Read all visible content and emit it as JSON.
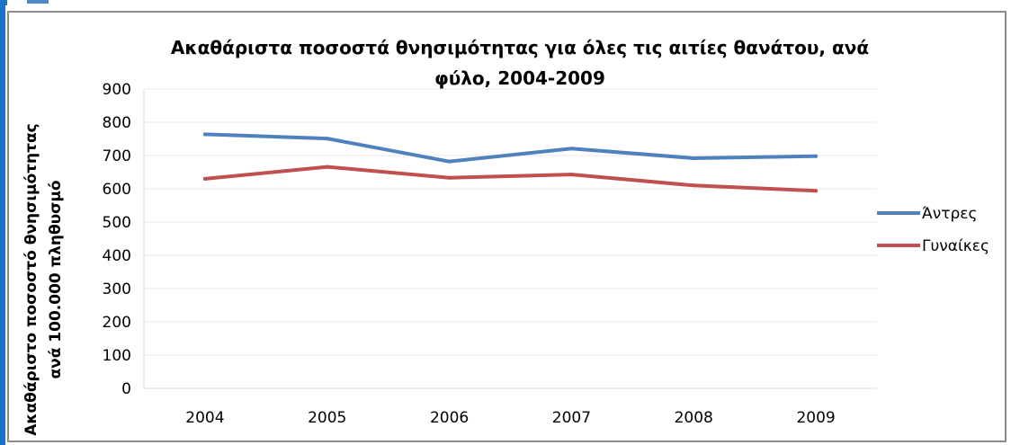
{
  "chart_data": {
    "type": "line",
    "title_line1": "Ακαθάριστα ποσοστά θνησιμότητας για όλες τις αιτίες θανάτου, ανά",
    "title_line2": "φύλο, 2004-2009",
    "ylabel_line1": "Ακαθάριστο ποσοστό θνησιμότητας",
    "ylabel_line2": "ανά  100.000  πληθυσμό",
    "xlabel": "",
    "categories": [
      "2004",
      "2005",
      "2006",
      "2007",
      "2008",
      "2009"
    ],
    "ylim": [
      0,
      900
    ],
    "yticks": [
      "0",
      "100",
      "200",
      "300",
      "400",
      "500",
      "600",
      "700",
      "800",
      "900"
    ],
    "grid": true,
    "legend_position": "right",
    "series": [
      {
        "name": "Άντρες",
        "color": "#4f81bd",
        "values": [
          764,
          751,
          682,
          721,
          692,
          698
        ]
      },
      {
        "name": "Γυναίκες",
        "color": "#c0504d",
        "values": [
          630,
          666,
          633,
          643,
          610,
          594
        ]
      }
    ]
  }
}
